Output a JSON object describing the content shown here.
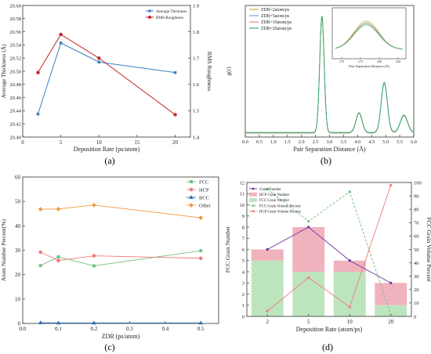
{
  "chart_data": [
    {
      "type": "line",
      "panel_label": "(a)",
      "xlabel": "Deposition Rate (ps/atom)",
      "ylabel": "Average Thickness (Å)",
      "y2label": "RMS Roughness",
      "xlim": [
        0,
        22
      ],
      "xticks": [
        0,
        5,
        10,
        15,
        20
      ],
      "ylim": [
        20.4,
        20.6
      ],
      "yticks": [
        "20.40",
        "20.42",
        "20.44",
        "20.46",
        "20.48",
        "20.50",
        "20.52",
        "20.54",
        "20.56",
        "20.58",
        "20.60"
      ],
      "y2lim": [
        1.4,
        1.9
      ],
      "y2ticks": [
        "1.4",
        "1.5",
        "1.6",
        "1.7",
        "1.8",
        "1.9"
      ],
      "series": [
        {
          "name": "Average Thickness",
          "axis": "left",
          "color": "#3d7fc4",
          "marker": "square",
          "x": [
            2,
            5,
            10,
            20
          ],
          "values": [
            20.435,
            20.543,
            20.514,
            20.498
          ]
        },
        {
          "name": "RMS Roughness",
          "axis": "right",
          "color": "#c0282d",
          "marker": "circle",
          "x": [
            2,
            5,
            10,
            20
          ],
          "values": [
            1.645,
            1.79,
            1.7,
            1.485
          ]
        }
      ],
      "legend": "top-right"
    },
    {
      "type": "line",
      "panel_label": "(b)",
      "xlabel": "Pair Separation Distance (Å)",
      "ylabel": "g(r)",
      "xlim": [
        0,
        6
      ],
      "xticks": [
        "0.0",
        "0.5",
        "1.0",
        "1.5",
        "2.0",
        "2.5",
        "3.0",
        "3.5",
        "4.0",
        "4.5",
        "5.0",
        "5.5",
        "6.0"
      ],
      "peaks": [
        {
          "center": 2.73,
          "height": 1.0,
          "width": 0.08
        },
        {
          "center": 4.05,
          "height": 0.17,
          "width": 0.11
        },
        {
          "center": 4.95,
          "height": 0.43,
          "width": 0.11
        },
        {
          "center": 5.65,
          "height": 0.15,
          "width": 0.13
        }
      ],
      "series": [
        {
          "name": "ZDR=2atom/ps",
          "color": "#b5b34a"
        },
        {
          "name": "ZDR=5atom/ps",
          "color": "#6aaee0"
        },
        {
          "name": "ZDR=10atom/ps",
          "color": "#f08a8a"
        },
        {
          "name": "ZDR=20atom/ps",
          "color": "#2eae6e"
        }
      ],
      "inset": {
        "xlabel": "Pair Separation Distance (Å)",
        "xticks": [
          "2.70",
          "2.75",
          "2.80",
          "2.85"
        ]
      },
      "legend": "top-left"
    },
    {
      "type": "line",
      "panel_label": "(c)",
      "xlabel": "ZDR (ps/atom)",
      "ylabel": "Atom Number Percent(%)",
      "xlim": [
        0,
        0.55
      ],
      "xticks": [
        "0.0",
        "0.1",
        "0.2",
        "0.3",
        "0.4",
        "0.5"
      ],
      "ylim": [
        0,
        60
      ],
      "yticks": [
        "0",
        "10",
        "20",
        "30",
        "40",
        "50",
        "60"
      ],
      "x": [
        0.05,
        0.1,
        0.2,
        0.5
      ],
      "series": [
        {
          "name": "FCC",
          "color": "#6bbf7b",
          "marker": "square",
          "values": [
            23.7,
            27.3,
            23.6,
            29.8
          ]
        },
        {
          "name": "HCP",
          "color": "#f07a7a",
          "marker": "circle",
          "values": [
            29.2,
            25.8,
            27.7,
            26.7
          ]
        },
        {
          "name": "BCC",
          "color": "#2f6fb6",
          "marker": "triangle",
          "values": [
            0.3,
            0.2,
            0.2,
            0.2
          ]
        },
        {
          "name": "Other",
          "color": "#f29a3a",
          "marker": "diamond",
          "values": [
            46.8,
            46.9,
            48.5,
            43.3
          ]
        }
      ],
      "legend": "top-right"
    },
    {
      "type": "bar",
      "panel_label": "(d)",
      "xlabel": "Deposition Rate (atom/ps)",
      "ylabel": "FCC Grain Number",
      "y2label": "FCC Grain Volume Percent",
      "categories": [
        "2",
        "5",
        "10",
        "20"
      ],
      "ylim": [
        0,
        12
      ],
      "yticks": [
        "0",
        "1",
        "2",
        "3",
        "4",
        "5",
        "6",
        "7",
        "8",
        "9",
        "10",
        "11",
        "12"
      ],
      "y2lim": [
        0,
        100
      ],
      "y2ticks": [
        "0",
        "10",
        "20",
        "30",
        "40",
        "50",
        "60",
        "70",
        "80",
        "90",
        "100"
      ],
      "bars": [
        {
          "name": "FCC Grain Number",
          "color": "#bde5bd",
          "values": [
            5,
            4,
            4,
            1
          ]
        },
        {
          "name": "HCP Grain Number",
          "color": "#f0b3bd",
          "values": [
            1,
            4,
            1,
            2
          ]
        }
      ],
      "lines": [
        {
          "name": "Grain Number",
          "axis": "left",
          "color": "#7030a0",
          "marker": "square",
          "values": [
            6,
            8,
            5,
            3
          ]
        },
        {
          "name": "FCC Grain Volume Percent",
          "axis": "right",
          "color": "#6bbf7b",
          "marker": "square",
          "dashed": true,
          "values": [
            95,
            71,
            93,
            1
          ]
        },
        {
          "name": "HCP Grain Volume Percent",
          "axis": "right",
          "color": "#f07a7a",
          "marker": "square",
          "values": [
            4,
            29,
            7,
            98
          ]
        }
      ],
      "legend": "top-left"
    }
  ]
}
